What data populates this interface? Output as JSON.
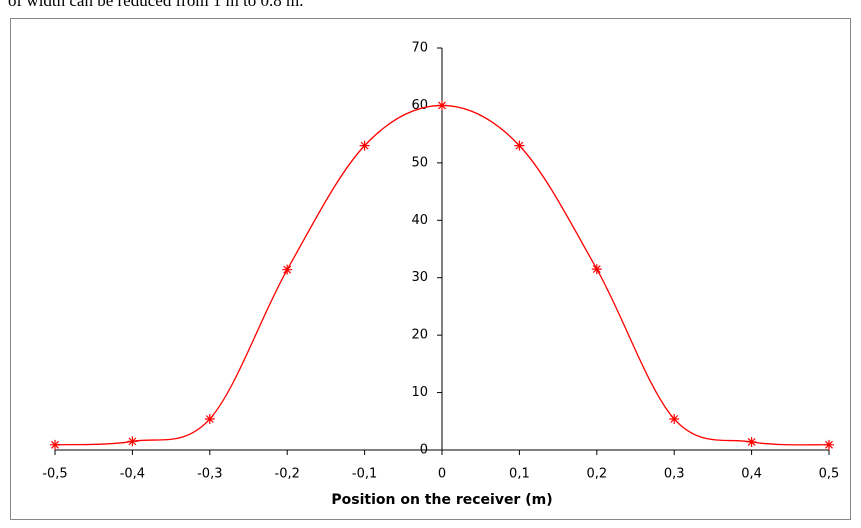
{
  "caption": "of width can be reduced from 1 m to 0.8 m.",
  "chart_data": {
    "type": "line",
    "x": [
      -0.5,
      -0.4,
      -0.3,
      -0.2,
      -0.1,
      0,
      0.1,
      0.2,
      0.3,
      0.4,
      0.5
    ],
    "values": [
      0.9,
      1.5,
      5.4,
      31.4,
      53,
      60,
      53,
      31.5,
      5.4,
      1.4,
      0.9
    ],
    "color": "#ff0000",
    "xlabel": "Position on the receiver (m)",
    "xlim": [
      -0.5,
      0.5
    ],
    "xticks": [
      {
        "value": -0.5,
        "label": "-0,5"
      },
      {
        "value": -0.4,
        "label": "-0,4"
      },
      {
        "value": -0.3,
        "label": "-0,3"
      },
      {
        "value": -0.2,
        "label": "-0,2"
      },
      {
        "value": -0.1,
        "label": "-0,1"
      },
      0,
      {
        "value": 0.1,
        "label": "0,1"
      },
      {
        "value": 0.2,
        "label": "0,2"
      },
      {
        "value": 0.3,
        "label": "0,3"
      },
      {
        "value": 0.4,
        "label": "0,4"
      },
      {
        "value": 0.5,
        "label": "0,5"
      }
    ],
    "ylim": [
      0,
      70
    ],
    "yticks": [
      0,
      10,
      20,
      30,
      40,
      50,
      60,
      70
    ]
  }
}
